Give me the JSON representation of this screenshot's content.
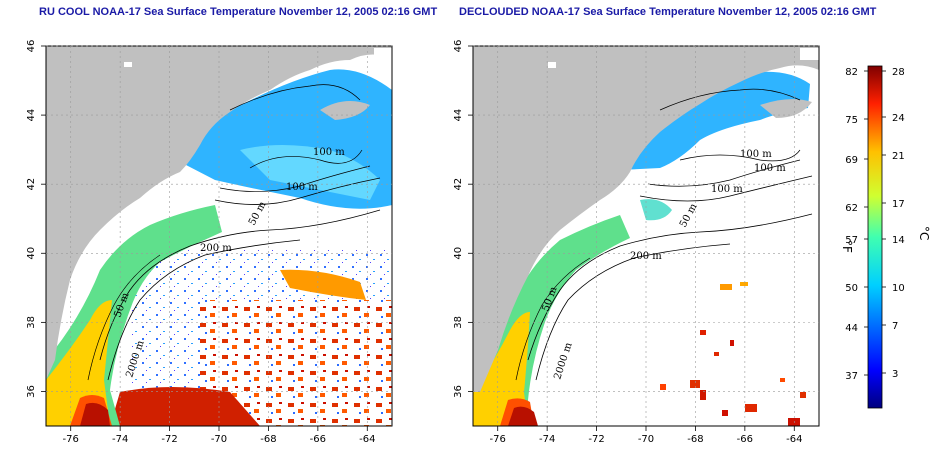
{
  "panels": [
    {
      "title": "RU COOL NOAA-17 Sea Surface Temperature November 12, 2005 02:16 GMT",
      "x_ticks": [
        "-76",
        "-74",
        "-72",
        "-70",
        "-68",
        "-66",
        "-64"
      ],
      "y_ticks": [
        "36",
        "38",
        "40",
        "42",
        "44",
        "46"
      ],
      "contour_labels": [
        "100 m",
        "100 m",
        "50 m",
        "200 m",
        "50 m",
        "2000 m"
      ]
    },
    {
      "title": "DECLOUDED NOAA-17 Sea Surface Temperature November 12, 2005 02:16 GMT",
      "x_ticks": [
        "-76",
        "-74",
        "-72",
        "-70",
        "-68",
        "-66",
        "-64"
      ],
      "y_ticks": [
        "36",
        "38",
        "40",
        "42",
        "44",
        "46"
      ],
      "contour_labels": [
        "100 m",
        "100 m",
        "100 m",
        "50 m",
        "200 m",
        "50 m",
        "2000 m"
      ]
    }
  ],
  "colorbar": {
    "fahrenheit_labels": [
      "82",
      "75",
      "69",
      "62",
      "57",
      "50",
      "44",
      "37"
    ],
    "celsius_labels": [
      "28",
      "24",
      "21",
      "17",
      "14",
      "10",
      "7",
      "3"
    ],
    "fahrenheit_unit": "°F",
    "celsius_unit": "°C"
  },
  "colors": {
    "land": "#c0c0c0",
    "title": "#1a1aa6",
    "cold": "#00007f",
    "hot": "#7f0000"
  }
}
